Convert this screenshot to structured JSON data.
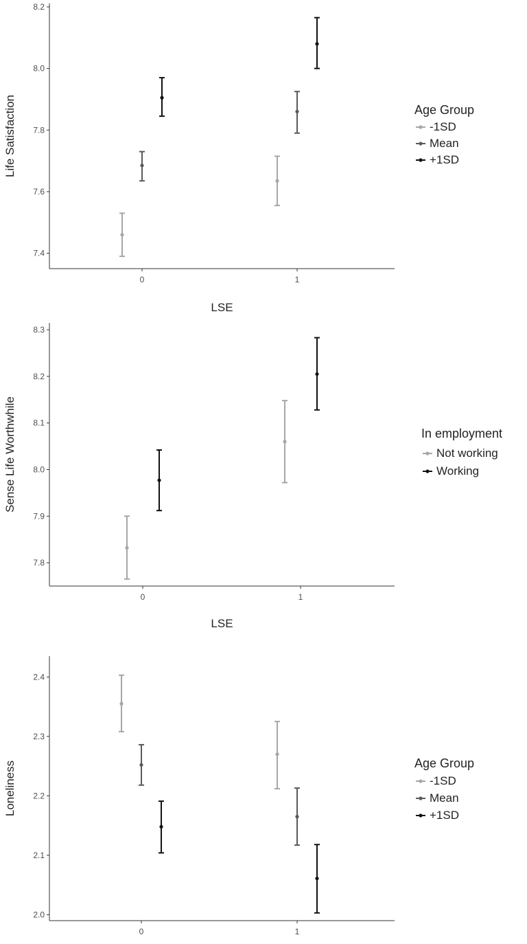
{
  "chart_data": [
    {
      "type": "scatter",
      "subtype": "point-with-errorbars",
      "x_categories": [
        "0",
        "1"
      ],
      "xlabel": "LSE",
      "ylabel": "Life Satisfaction",
      "ylim": [
        7.35,
        8.2
      ],
      "yticks": [
        "7.4",
        "7.6",
        "7.8",
        "8.0",
        "8.2"
      ],
      "legend": {
        "title": "Age Group",
        "position": "right"
      },
      "series": [
        {
          "name": "-1SD",
          "color": "#a6a6a6",
          "points": [
            {
              "x": "0",
              "y": 7.46,
              "lower": 7.39,
              "upper": 7.53
            },
            {
              "x": "1",
              "y": 7.635,
              "lower": 7.555,
              "upper": 7.715
            }
          ]
        },
        {
          "name": "Mean",
          "color": "#595959",
          "points": [
            {
              "x": "0",
              "y": 7.685,
              "lower": 7.635,
              "upper": 7.73
            },
            {
              "x": "1",
              "y": 7.86,
              "lower": 7.79,
              "upper": 7.925
            }
          ]
        },
        {
          "name": "+1SD",
          "color": "#111111",
          "points": [
            {
              "x": "0",
              "y": 7.905,
              "lower": 7.845,
              "upper": 7.97
            },
            {
              "x": "1",
              "y": 8.08,
              "lower": 8.0,
              "upper": 8.165
            }
          ]
        }
      ]
    },
    {
      "type": "scatter",
      "subtype": "point-with-errorbars",
      "x_categories": [
        "0",
        "1"
      ],
      "xlabel": "LSE",
      "ylabel": "Sense Life Worthwhile",
      "ylim": [
        7.75,
        8.3
      ],
      "yticks": [
        "7.8",
        "7.9",
        "8.0",
        "8.1",
        "8.2",
        "8.3"
      ],
      "legend": {
        "title": "In employment",
        "position": "right"
      },
      "series": [
        {
          "name": "Not working",
          "color": "#a6a6a6",
          "points": [
            {
              "x": "0",
              "y": 7.832,
              "lower": 7.765,
              "upper": 7.9
            },
            {
              "x": "1",
              "y": 8.06,
              "lower": 7.972,
              "upper": 8.148
            }
          ]
        },
        {
          "name": "Working",
          "color": "#111111",
          "points": [
            {
              "x": "0",
              "y": 7.977,
              "lower": 7.912,
              "upper": 8.042
            },
            {
              "x": "1",
              "y": 8.205,
              "lower": 8.128,
              "upper": 8.283
            }
          ]
        }
      ]
    },
    {
      "type": "scatter",
      "subtype": "point-with-errorbars",
      "x_categories": [
        "0",
        "1"
      ],
      "xlabel": "",
      "ylabel": "Loneliness",
      "ylim": [
        1.99,
        2.42
      ],
      "yticks": [
        "2.0",
        "2.1",
        "2.2",
        "2.3",
        "2.4"
      ],
      "legend": {
        "title": "Age Group",
        "position": "right"
      },
      "series": [
        {
          "name": "-1SD",
          "color": "#a6a6a6",
          "points": [
            {
              "x": "0",
              "y": 2.355,
              "lower": 2.308,
              "upper": 2.403
            },
            {
              "x": "1",
              "y": 2.27,
              "lower": 2.212,
              "upper": 2.325
            }
          ]
        },
        {
          "name": "Mean",
          "color": "#595959",
          "points": [
            {
              "x": "0",
              "y": 2.252,
              "lower": 2.218,
              "upper": 2.286
            },
            {
              "x": "1",
              "y": 2.165,
              "lower": 2.117,
              "upper": 2.213
            }
          ]
        },
        {
          "name": "+1SD",
          "color": "#111111",
          "points": [
            {
              "x": "0",
              "y": 2.148,
              "lower": 2.104,
              "upper": 2.191
            },
            {
              "x": "1",
              "y": 2.061,
              "lower": 2.003,
              "upper": 2.118
            }
          ]
        }
      ]
    }
  ]
}
